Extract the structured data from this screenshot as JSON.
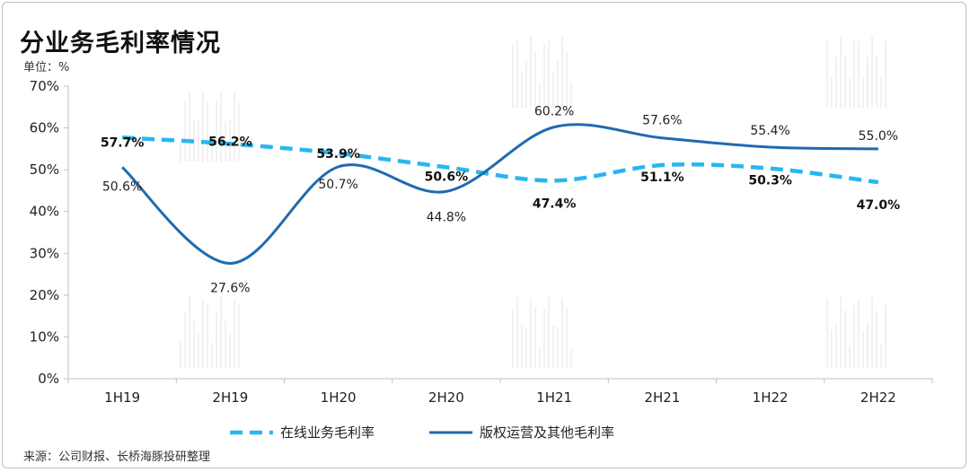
{
  "title": "分业务毛利率情况",
  "unit": "单位：%",
  "source": "来源：公司财报、长桥海豚投研整理",
  "chart_data": {
    "type": "line",
    "categories": [
      "1H19",
      "2H19",
      "1H20",
      "2H20",
      "1H21",
      "2H21",
      "1H22",
      "2H22"
    ],
    "y_ticks": [
      "0%",
      "10%",
      "20%",
      "30%",
      "40%",
      "50%",
      "60%",
      "70%"
    ],
    "ylim": [
      0,
      70
    ],
    "series": [
      {
        "name": "在线业务毛利率",
        "color": "#29b6f0",
        "style": "dashed",
        "values": [
          57.7,
          56.2,
          53.9,
          50.6,
          47.4,
          51.1,
          50.3,
          47.0
        ],
        "labels": [
          "57.7%",
          "56.2%",
          "53.9%",
          "50.6%",
          "47.4%",
          "51.1%",
          "50.3%",
          "47.0%"
        ]
      },
      {
        "name": "版权运营及其他毛利率",
        "color": "#1f6bb0",
        "style": "solid",
        "values": [
          50.6,
          27.6,
          50.7,
          44.8,
          60.2,
          57.6,
          55.4,
          55.0
        ],
        "labels": [
          "50.6%",
          "27.6%",
          "50.7%",
          "44.8%",
          "60.2%",
          "57.6%",
          "55.4%",
          "55.0%"
        ]
      }
    ],
    "grid": false,
    "legend": "bottom"
  }
}
